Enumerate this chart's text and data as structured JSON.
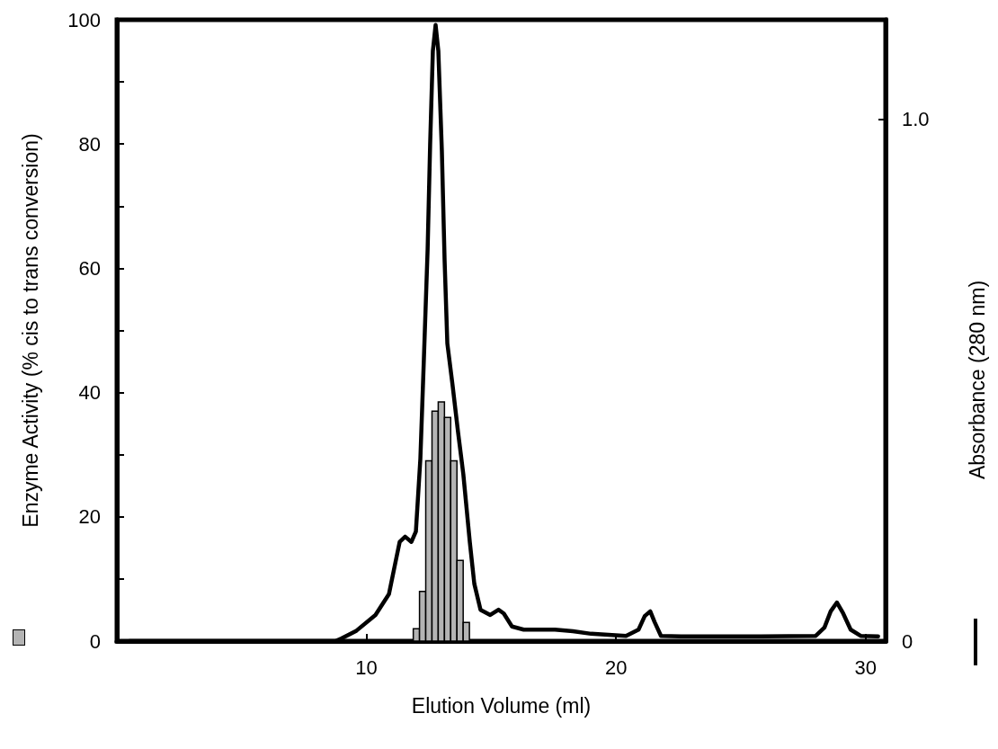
{
  "chart_data": {
    "type": "histogram",
    "xlabel": "Elution Volume (ml)",
    "ylabel": "Enzyme Activity (% cis to trans conversion)",
    "y2label": "Absorbance (280 nm)",
    "xlim": [
      0,
      30.8
    ],
    "xticks": [
      10,
      20,
      30
    ],
    "ylim": [
      0,
      100
    ],
    "yticks": [
      0,
      {
        "value": 10,
        "label": null
      },
      20,
      {
        "value": 30,
        "label": null
      },
      40,
      {
        "value": 50,
        "label": null
      },
      60,
      {
        "value": 70,
        "label": null
      },
      80,
      {
        "value": 90,
        "label": null
      },
      100
    ],
    "y2lim": [
      0,
      1.19
    ],
    "y2ticks": [
      0,
      {
        "value": 1,
        "label": "1.0"
      }
    ],
    "grid": false,
    "series": [
      {
        "color": "#b4b4b4",
        "bins": [
          11.875,
          12.125,
          12.375,
          12.625,
          12.875,
          13.125,
          13.375,
          13.625,
          13.875,
          14.125
        ],
        "values": [
          2,
          8,
          29,
          37,
          38.5,
          36,
          29,
          13,
          3
        ]
      },
      {
        "type": "line",
        "axis": "y2",
        "color": "#000000",
        "line_style": "solid",
        "marker": "none",
        "x": [
          0.5,
          8.75,
          9.0,
          9.6,
          10.36,
          10.9,
          11.2,
          11.33,
          11.55,
          11.8,
          11.98,
          12.16,
          12.3,
          12.45,
          12.55,
          12.66,
          12.77,
          12.88,
          13.02,
          13.13,
          13.24,
          13.45,
          13.67,
          13.88,
          14.14,
          14.32,
          14.57,
          14.96,
          15.29,
          15.5,
          15.83,
          16.3,
          17.55,
          18.27,
          19.0,
          20.4,
          20.9,
          21.15,
          21.37,
          21.55,
          21.8,
          22.6,
          23.7,
          25.8,
          28.0,
          28.35,
          28.6,
          28.85,
          29.1,
          29.4,
          29.8,
          30.5
        ],
        "values": [
          0,
          0,
          0.005,
          0.02,
          0.05,
          0.09,
          0.16,
          0.19,
          0.2,
          0.19,
          0.21,
          0.35,
          0.54,
          0.75,
          0.95,
          1.13,
          1.18,
          1.13,
          0.94,
          0.73,
          0.57,
          0.49,
          0.4,
          0.32,
          0.19,
          0.11,
          0.06,
          0.05,
          0.06,
          0.053,
          0.028,
          0.022,
          0.022,
          0.019,
          0.014,
          0.01,
          0.022,
          0.048,
          0.057,
          0.036,
          0.01,
          0.009,
          0.009,
          0.009,
          0.01,
          0.026,
          0.057,
          0.074,
          0.053,
          0.022,
          0.01,
          0.009
        ]
      }
    ]
  }
}
